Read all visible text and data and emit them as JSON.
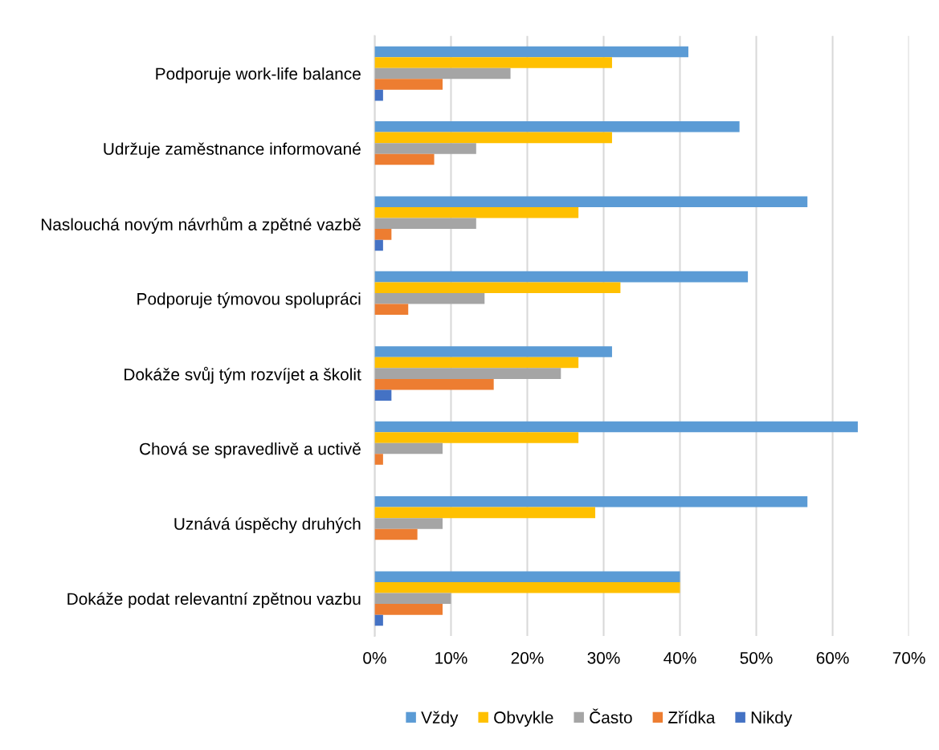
{
  "chart_data": {
    "type": "bar",
    "orientation": "horizontal",
    "categories": [
      "Podporuje work-life balance",
      "Udržuje zaměstnance informované",
      "Naslouchá novým návrhům a zpětné vazbě",
      "Podporuje týmovou spolupráci",
      "Dokáže svůj tým rozvíjet a školit",
      "Chová se spravedlivě a uctivě",
      "Uznává úspěchy druhých",
      "Dokáže podat relevantní zpětnou vazbu"
    ],
    "series": [
      {
        "name": "Vždy",
        "color": "#5b9bd5",
        "values": [
          41.1,
          47.8,
          56.7,
          48.9,
          31.1,
          63.3,
          56.7,
          40.0
        ]
      },
      {
        "name": "Obvykle",
        "color": "#ffc000",
        "values": [
          31.1,
          31.1,
          26.7,
          32.2,
          26.7,
          26.7,
          28.9,
          40.0
        ]
      },
      {
        "name": "Často",
        "color": "#a5a5a5",
        "values": [
          17.8,
          13.3,
          13.3,
          14.4,
          24.4,
          8.9,
          8.9,
          10.0
        ]
      },
      {
        "name": "Zřídka",
        "color": "#ed7d31",
        "values": [
          8.9,
          7.8,
          2.2,
          4.4,
          15.6,
          1.1,
          5.6,
          8.9
        ]
      },
      {
        "name": "Nikdy",
        "color": "#4472c4",
        "values": [
          1.1,
          null,
          1.1,
          null,
          2.2,
          null,
          null,
          1.1
        ]
      }
    ],
    "xlim": [
      0,
      70
    ],
    "xticks": [
      {
        "value": 0,
        "label": "0%"
      },
      {
        "value": 10,
        "label": "10%"
      },
      {
        "value": 20,
        "label": "20%"
      },
      {
        "value": 30,
        "label": "30%"
      },
      {
        "value": 40,
        "label": "40%"
      },
      {
        "value": 50,
        "label": "50%"
      },
      {
        "value": 60,
        "label": "60%"
      },
      {
        "value": 70,
        "label": "70%"
      }
    ],
    "grid": "x",
    "legend": "bottom"
  }
}
